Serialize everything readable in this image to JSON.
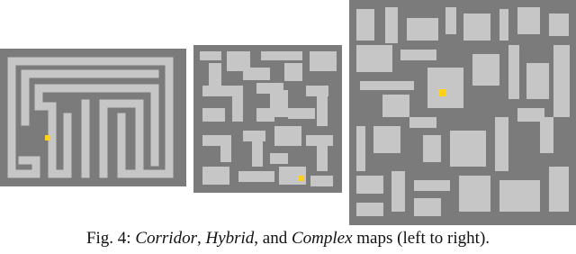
{
  "figure": {
    "caption": {
      "segments": [
        "Fig. 4: ",
        "Corridor",
        ", ",
        "Hybrid",
        ", and ",
        "Complex",
        " maps (left to right)."
      ]
    }
  }
}
